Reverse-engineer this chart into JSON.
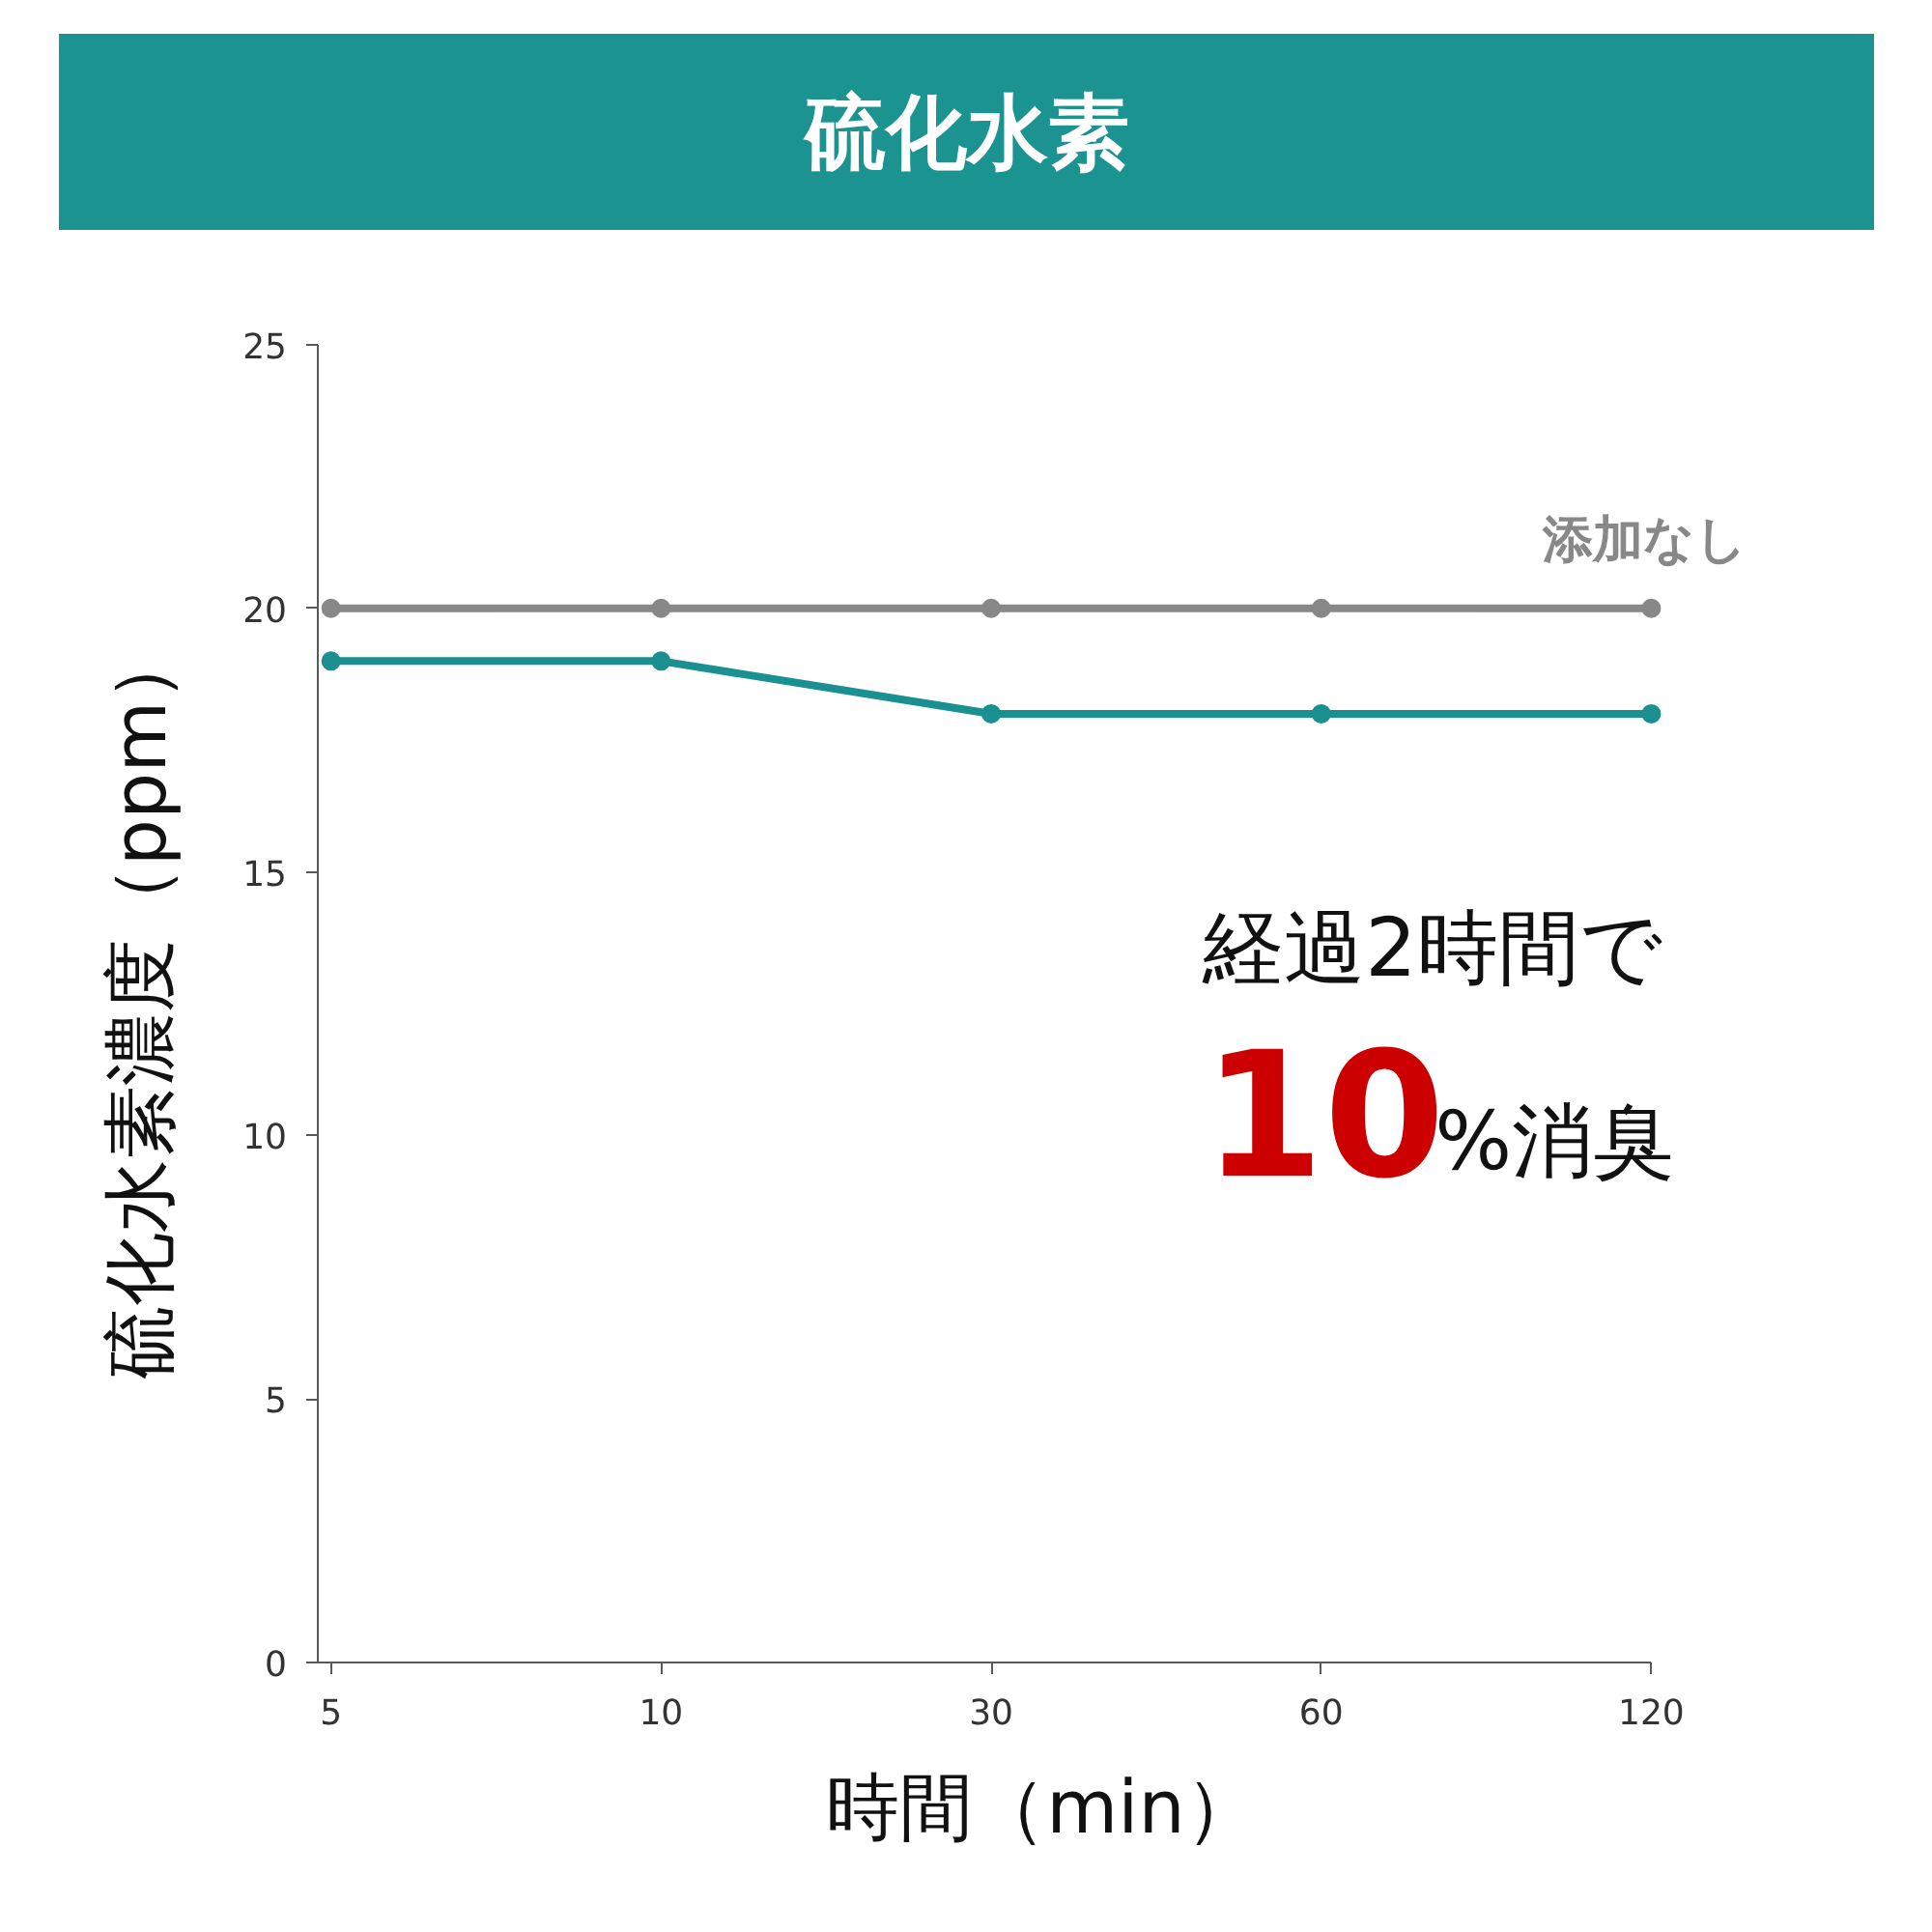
{
  "chart_data": {
    "type": "line",
    "title": "硫化水素",
    "xlabel": "時間（min）",
    "ylabel": "硫化水素濃度（ppm）",
    "categories": [
      "5",
      "10",
      "30",
      "60",
      "120"
    ],
    "series": [
      {
        "name": "添加なし",
        "color": "#888888",
        "values": [
          20,
          20,
          20,
          20,
          20
        ]
      },
      {
        "color": "#1a9090",
        "values": [
          19,
          19,
          18,
          18,
          18
        ]
      }
    ],
    "ylim": [
      0,
      25
    ],
    "yticks": [
      0,
      5,
      10,
      15,
      20,
      25
    ],
    "marker": "circle",
    "annotations": [
      "経過2時間で",
      "10",
      "%消臭"
    ]
  }
}
